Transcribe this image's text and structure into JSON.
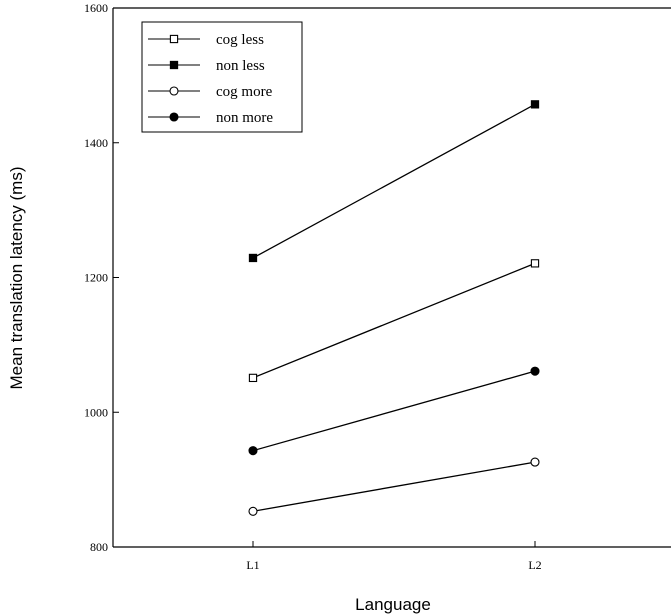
{
  "chart_data": {
    "type": "line",
    "title": "",
    "xlabel": "Language",
    "ylabel": "Mean translation latency (ms)",
    "categories": [
      "L1",
      "L2"
    ],
    "ylim": [
      800,
      1600
    ],
    "yticks": [
      800,
      1000,
      1200,
      1400,
      1600
    ],
    "grid": false,
    "legend_position": "top-left",
    "series": [
      {
        "name": "cog less",
        "marker": "open-square",
        "values": [
          1051,
          1221
        ]
      },
      {
        "name": "non less",
        "marker": "filled-square",
        "values": [
          1229,
          1457
        ]
      },
      {
        "name": "cog more",
        "marker": "open-circle",
        "values": [
          853,
          926
        ]
      },
      {
        "name": "non more",
        "marker": "filled-circle",
        "values": [
          943,
          1061
        ]
      }
    ]
  }
}
